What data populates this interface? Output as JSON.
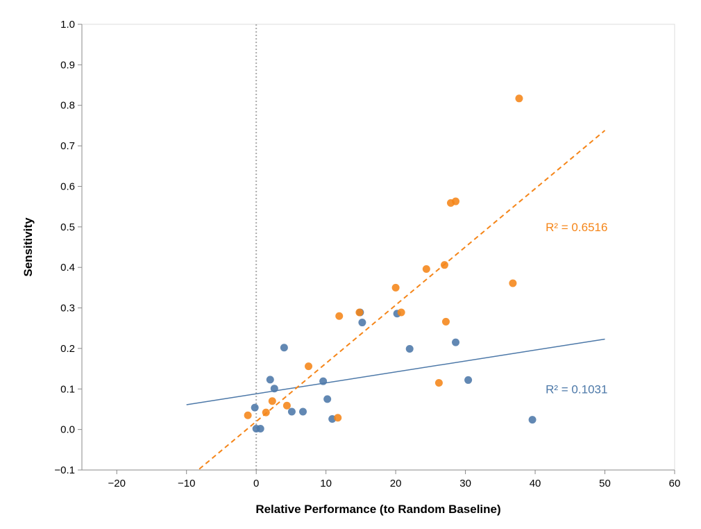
{
  "chart_data": {
    "type": "scatter",
    "xlabel": "Relative Performance (to Random Baseline)",
    "ylabel": "Sensitivity",
    "xlim": [
      -25,
      60
    ],
    "ylim": [
      -0.1,
      1.0
    ],
    "x_ticks": [
      -20,
      -10,
      0,
      10,
      20,
      30,
      40,
      50,
      60
    ],
    "y_ticks": [
      -0.1,
      0.0,
      0.1,
      0.2,
      0.3,
      0.4,
      0.5,
      0.6,
      0.7,
      0.8,
      0.9,
      1.0
    ],
    "x_tick_labels": [
      "−20",
      "−10",
      "0",
      "10",
      "20",
      "30",
      "40",
      "50",
      "60"
    ],
    "y_tick_labels": [
      "−0.1",
      "0.0",
      "0.1",
      "0.2",
      "0.3",
      "0.4",
      "0.5",
      "0.6",
      "0.7",
      "0.8",
      "0.9",
      "1.0"
    ],
    "reference_line": {
      "x": 0,
      "style": "dotted",
      "color": "#aaaaaa"
    },
    "grid": false,
    "series": [
      {
        "color": "#4c78a8",
        "points": [
          [
            -0.2,
            0.054
          ],
          [
            0.0,
            0.002
          ],
          [
            0.6,
            0.002
          ],
          [
            2.0,
            0.123
          ],
          [
            2.6,
            0.101
          ],
          [
            4.0,
            0.202
          ],
          [
            5.1,
            0.044
          ],
          [
            6.7,
            0.044
          ],
          [
            9.6,
            0.119
          ],
          [
            10.2,
            0.075
          ],
          [
            10.9,
            0.026
          ],
          [
            14.9,
            0.289
          ],
          [
            15.2,
            0.264
          ],
          [
            20.2,
            0.286
          ],
          [
            22.0,
            0.199
          ],
          [
            28.6,
            0.215
          ],
          [
            30.4,
            0.122
          ],
          [
            39.6,
            0.024
          ]
        ],
        "fit": {
          "x": [
            -10,
            50
          ],
          "y": [
            0.061,
            0.223
          ],
          "style": "solid"
        },
        "annotation": {
          "text": "R² = 0.1031",
          "x": 41.5,
          "y": 0.1
        }
      },
      {
        "color": "#f58518",
        "points": [
          [
            -1.2,
            0.035
          ],
          [
            1.4,
            0.042
          ],
          [
            2.3,
            0.07
          ],
          [
            4.4,
            0.059
          ],
          [
            7.5,
            0.156
          ],
          [
            11.7,
            0.029
          ],
          [
            11.9,
            0.28
          ],
          [
            14.8,
            0.289
          ],
          [
            20.0,
            0.35
          ],
          [
            20.8,
            0.289
          ],
          [
            24.4,
            0.396
          ],
          [
            26.2,
            0.115
          ],
          [
            27.0,
            0.406
          ],
          [
            27.2,
            0.266
          ],
          [
            27.9,
            0.559
          ],
          [
            28.6,
            0.563
          ],
          [
            36.8,
            0.361
          ],
          [
            37.7,
            0.817
          ]
        ],
        "fit": {
          "x": [
            -10,
            50
          ],
          "y": [
            -0.124,
            0.738
          ],
          "style": "dashed"
        },
        "annotation": {
          "text": "R² = 0.6516",
          "x": 41.5,
          "y": 0.5
        }
      }
    ]
  }
}
